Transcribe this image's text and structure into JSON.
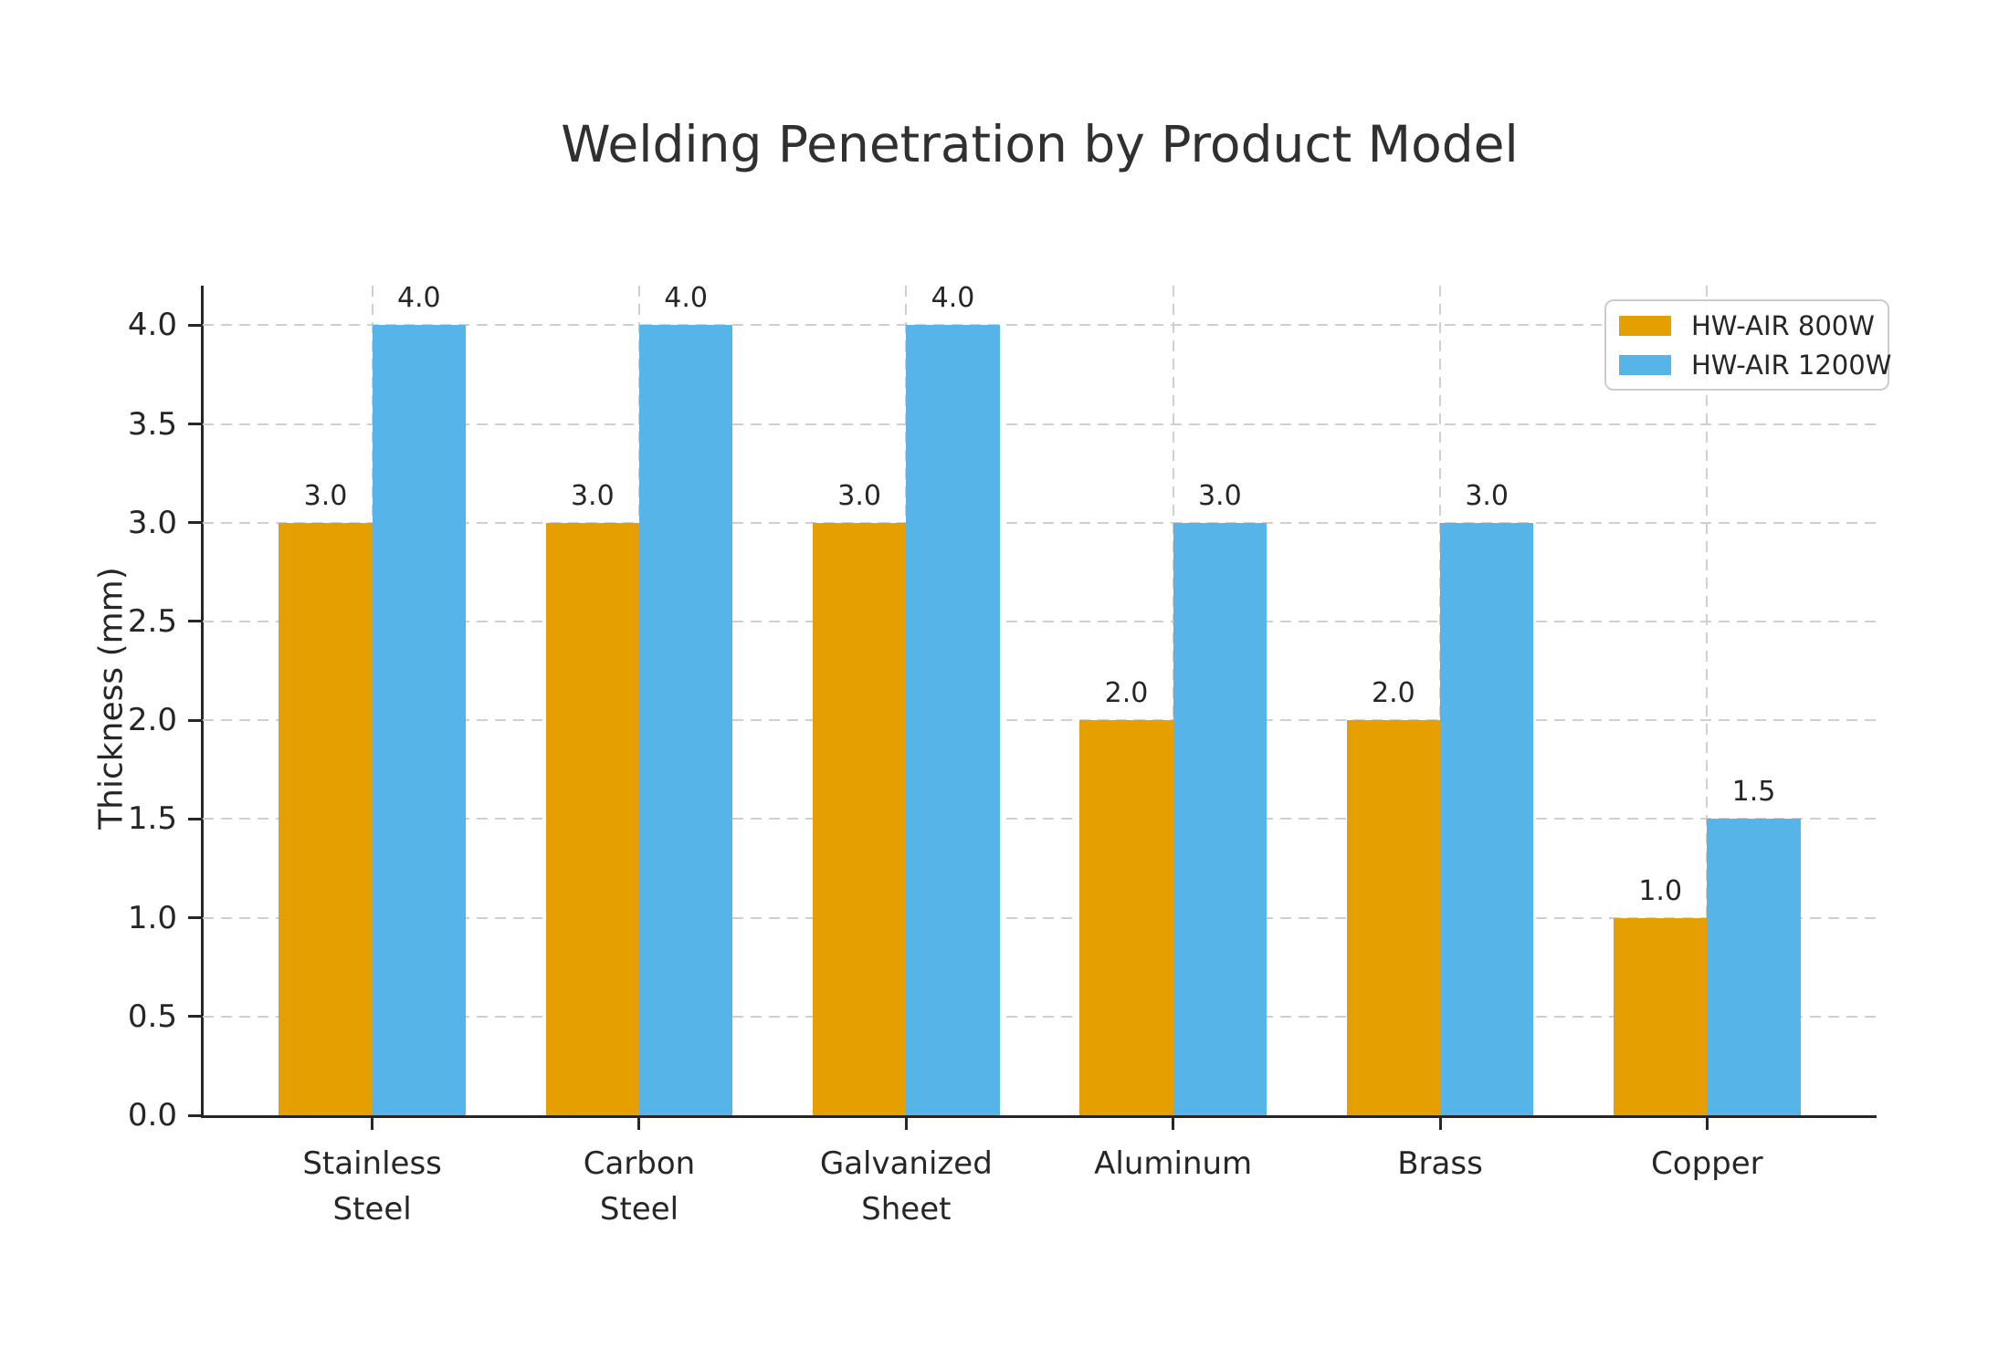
{
  "chart_data": {
    "type": "bar",
    "title": "Welding Penetration by Product Model",
    "xlabel": "",
    "ylabel": "Thickness (mm)",
    "categories": [
      "Stainless\nSteel",
      "Carbon\nSteel",
      "Galvanized\nSheet",
      "Aluminum",
      "Brass",
      "Copper"
    ],
    "series": [
      {
        "name": "HW-AIR 800W",
        "color": "#E69F00",
        "values": [
          3.0,
          3.0,
          3.0,
          2.0,
          2.0,
          1.0
        ]
      },
      {
        "name": "HW-AIR 1200W",
        "color": "#56B4E9",
        "values": [
          4.0,
          4.0,
          4.0,
          3.0,
          3.0,
          1.5
        ]
      }
    ],
    "ytick_labels": [
      "0.0",
      "0.5",
      "1.0",
      "1.5",
      "2.0",
      "2.5",
      "3.0",
      "3.5",
      "4.0"
    ],
    "ylim": [
      0,
      4.2
    ],
    "bar_value_label_format": ".1f",
    "grid": true,
    "legend_position": "upper right"
  }
}
